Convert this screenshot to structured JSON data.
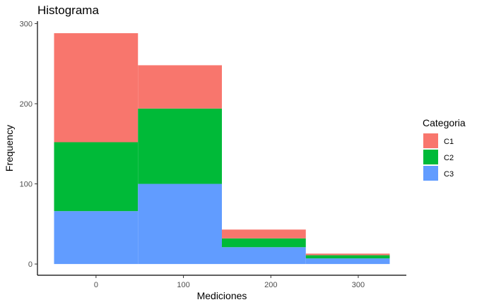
{
  "chart_data": {
    "type": "bar",
    "stacked": true,
    "title": "Histograma",
    "xlabel": "Mediciones",
    "ylabel": "Frequency",
    "bins": [
      {
        "x0": -48,
        "x1": 48
      },
      {
        "x0": 48,
        "x1": 144
      },
      {
        "x0": 144,
        "x1": 240
      },
      {
        "x0": 240,
        "x1": 336
      }
    ],
    "series": [
      {
        "name": "C3",
        "color": "#619CFF",
        "values": [
          66,
          100,
          21,
          7
        ]
      },
      {
        "name": "C2",
        "color": "#00BA38",
        "values": [
          86,
          94,
          11,
          4
        ]
      },
      {
        "name": "C1",
        "color": "#F8766D",
        "values": [
          136,
          54,
          11,
          2
        ]
      }
    ],
    "xlim": [
      -67,
      355
    ],
    "ylim": [
      -14,
      303
    ],
    "x_ticks": [
      0,
      100,
      200,
      300
    ],
    "y_ticks": [
      0,
      100,
      200,
      300
    ],
    "x_tick_labels": [
      "0",
      "100",
      "200",
      "300"
    ],
    "y_tick_labels": [
      "0",
      "100",
      "200",
      "300"
    ],
    "legend": {
      "title": "Categoria",
      "position": "right",
      "entries": [
        {
          "label": "C1",
          "color": "#F8766D"
        },
        {
          "label": "C2",
          "color": "#00BA38"
        },
        {
          "label": "C3",
          "color": "#619CFF"
        }
      ]
    },
    "grid": false
  }
}
